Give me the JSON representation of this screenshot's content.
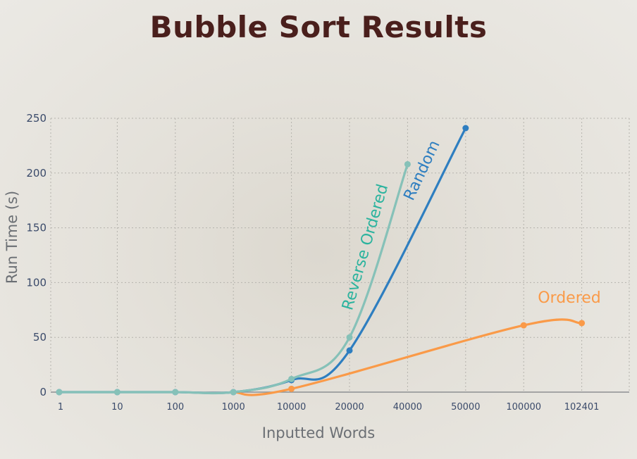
{
  "chart_data": {
    "type": "line",
    "title": "Bubble Sort Results",
    "xlabel": "Inputted Words",
    "ylabel": "Run Time (s)",
    "ylim": [
      0,
      250
    ],
    "yticks": [
      "0",
      "50",
      "100",
      "150",
      "200",
      "250"
    ],
    "categories": [
      "1",
      "10",
      "100",
      "1000",
      "10000",
      "20000",
      "40000",
      "50000",
      "100000",
      "102401"
    ],
    "grid": true,
    "series": [
      {
        "name": "Ordered",
        "color": "#fa9a48",
        "points": [
          {
            "x": "10000",
            "y": 3
          },
          {
            "x": "100000",
            "y": 61
          },
          {
            "x": "102401",
            "y": 63
          }
        ]
      },
      {
        "name": "Random",
        "color": "#2e7ec0",
        "points": [
          {
            "x": "1",
            "y": 0
          },
          {
            "x": "10",
            "y": 0
          },
          {
            "x": "100",
            "y": 0
          },
          {
            "x": "1000",
            "y": 0
          },
          {
            "x": "10000",
            "y": 11
          },
          {
            "x": "20000",
            "y": 38
          },
          {
            "x": "50000",
            "y": 241
          }
        ]
      },
      {
        "name": "Reverse Ordered",
        "color": "#86c1b8",
        "points": [
          {
            "x": "1",
            "y": 0
          },
          {
            "x": "10",
            "y": 0
          },
          {
            "x": "100",
            "y": 0
          },
          {
            "x": "1000",
            "y": 0
          },
          {
            "x": "10000",
            "y": 12
          },
          {
            "x": "20000",
            "y": 50
          },
          {
            "x": "40000",
            "y": 208
          }
        ]
      }
    ],
    "labels": {
      "ordered": "Ordered",
      "random": "Random",
      "reverse": "Reverse Ordered"
    },
    "label_colors": {
      "ordered": "#fa9a48",
      "random": "#2e7ec0",
      "reverse": "#2bb39e"
    }
  }
}
